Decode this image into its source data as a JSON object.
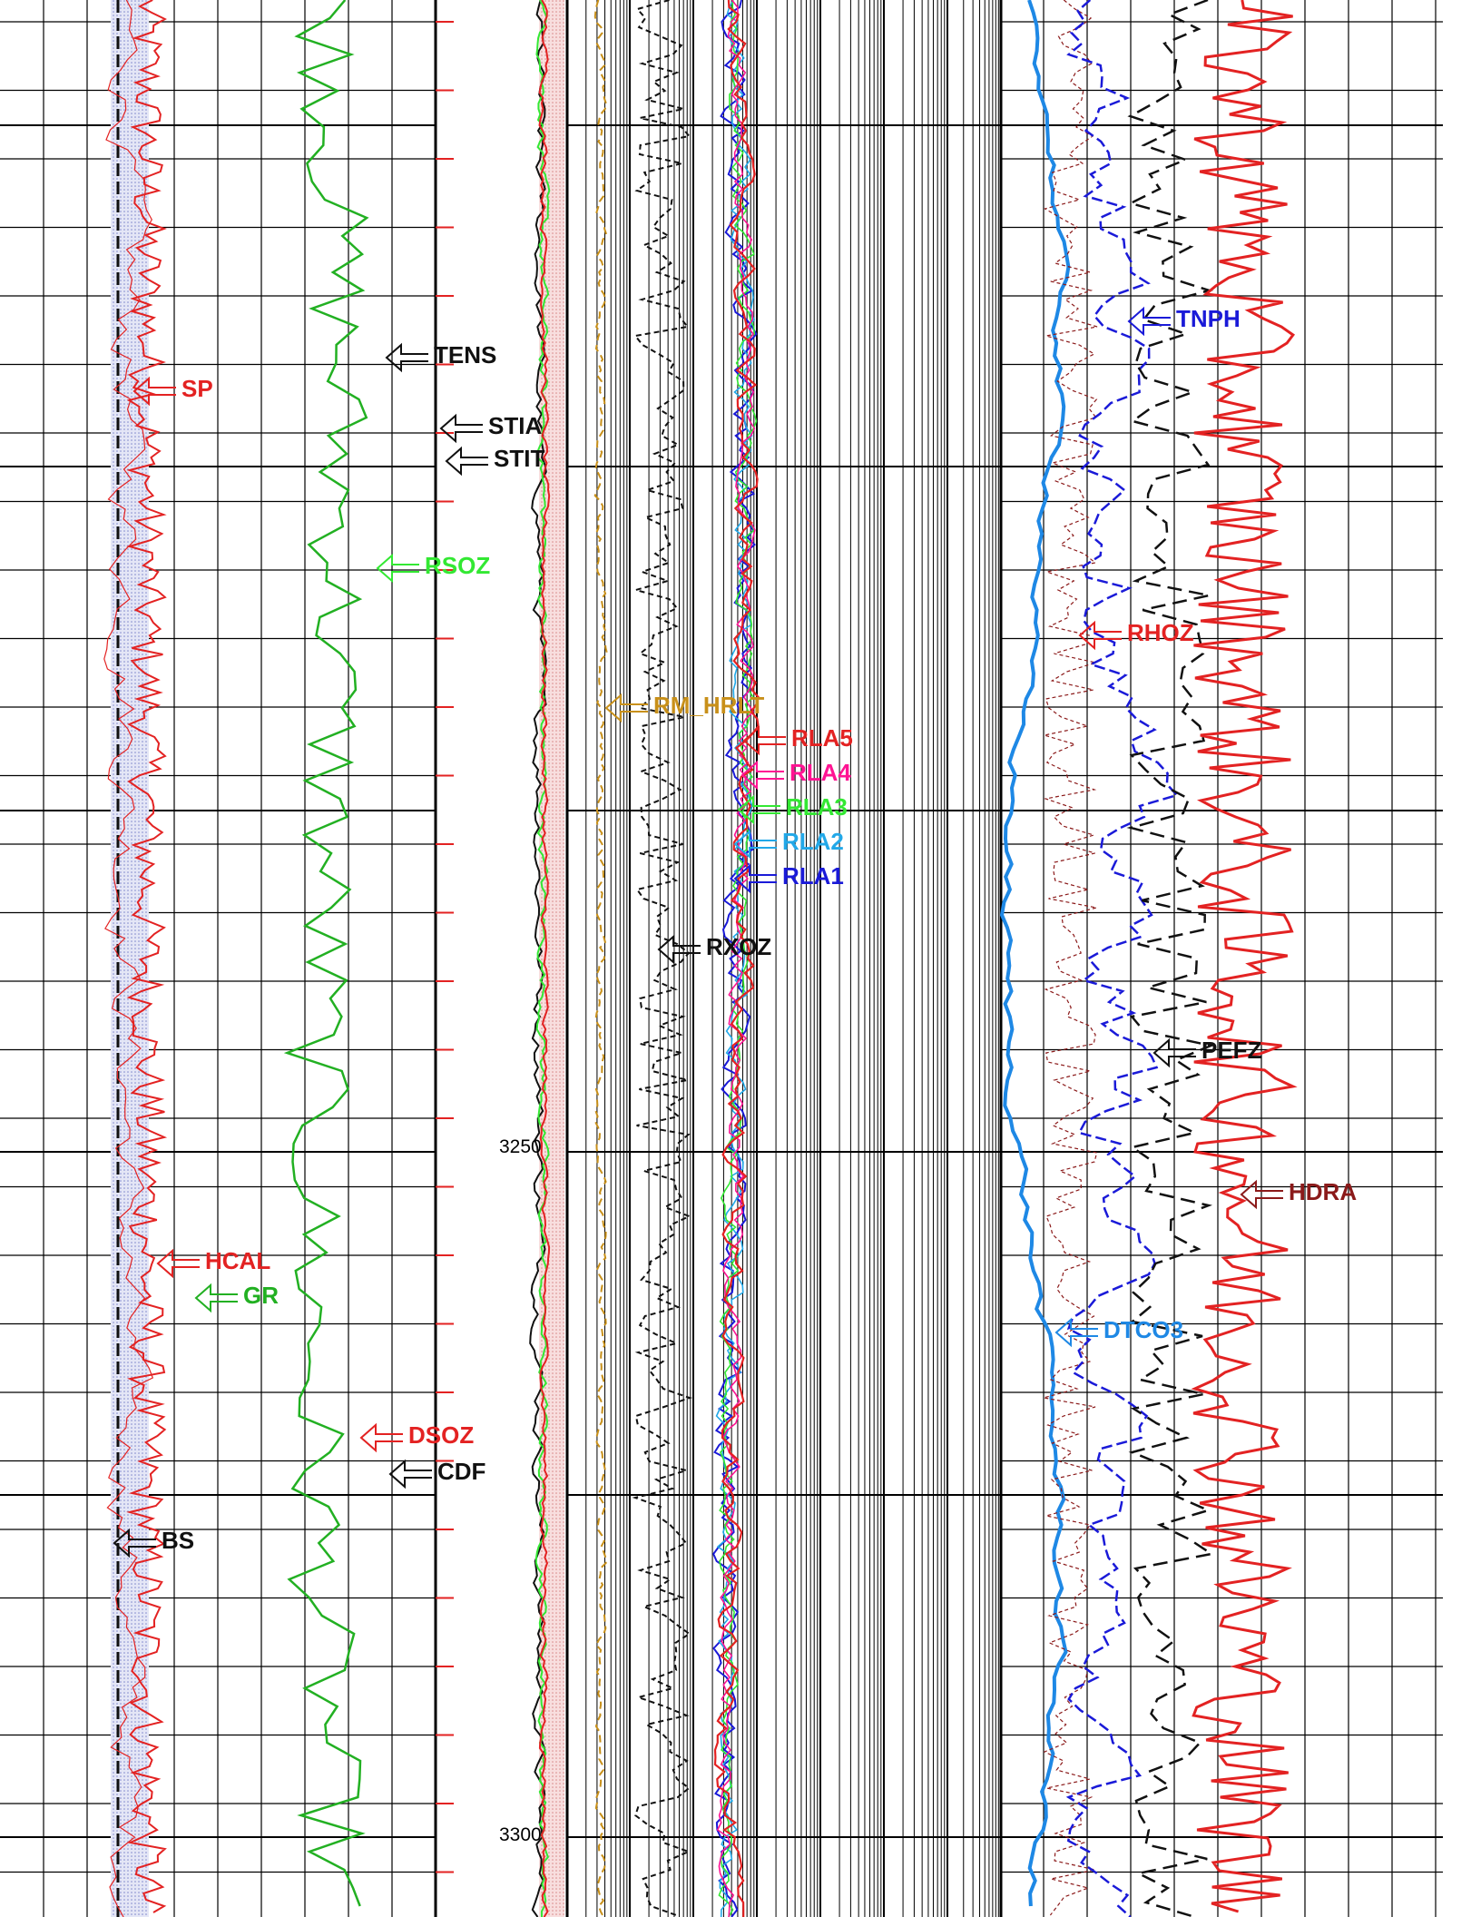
{
  "chart_data": {
    "type": "line",
    "title": "",
    "depth_axis": {
      "unit": "",
      "range": [
        3200,
        3300
      ],
      "labels": [
        {
          "depth": 3250,
          "text": "3250"
        },
        {
          "depth": 3300,
          "text": "3300"
        }
      ]
    },
    "tracks": [
      {
        "name": "track-1",
        "series": [
          {
            "name": "SP",
            "color": "#e32222",
            "label": "SP"
          },
          {
            "name": "HCAL",
            "color": "#e32222",
            "label": "HCAL"
          },
          {
            "name": "GR",
            "color": "#22b022",
            "label": "GR"
          },
          {
            "name": "BS",
            "color": "#111111",
            "label": "BS"
          }
        ]
      },
      {
        "name": "depth-track",
        "series": [
          {
            "name": "TENS",
            "color": "#111111",
            "label": "TENS"
          },
          {
            "name": "STIA",
            "color": "#111111",
            "label": "STIA"
          },
          {
            "name": "STIT",
            "color": "#111111",
            "label": "STIT"
          },
          {
            "name": "RSOZ",
            "color": "#33e833",
            "label": "RSOZ"
          },
          {
            "name": "DSOZ",
            "color": "#e32222",
            "label": "DSOZ"
          },
          {
            "name": "CDF",
            "color": "#111111",
            "label": "CDF"
          }
        ]
      },
      {
        "name": "resistivity-track",
        "scale": "log",
        "series": [
          {
            "name": "RM_HRLT",
            "color": "#c8901a",
            "label": "RM_HRLT"
          },
          {
            "name": "RLA5",
            "color": "#e32222",
            "label": "RLA5"
          },
          {
            "name": "RLA4",
            "color": "#ff1493",
            "label": "RLA4"
          },
          {
            "name": "RLA3",
            "color": "#33e833",
            "label": "RLA3"
          },
          {
            "name": "RLA2",
            "color": "#22a8e8",
            "label": "RLA2"
          },
          {
            "name": "RLA1",
            "color": "#1a1ad8",
            "label": "RLA1"
          },
          {
            "name": "RXOZ",
            "color": "#111111",
            "label": "RXOZ"
          }
        ]
      },
      {
        "name": "porosity-density-track",
        "series": [
          {
            "name": "TNPH",
            "color": "#1a1ad8",
            "label": "TNPH"
          },
          {
            "name": "RHOZ",
            "color": "#e32222",
            "label": "RHOZ"
          },
          {
            "name": "PEFZ",
            "color": "#111111",
            "label": "PEFZ"
          },
          {
            "name": "HDRA",
            "color": "#8b1a1a",
            "label": "HDRA"
          },
          {
            "name": "DTCO3",
            "color": "#1e88e5",
            "label": "DTCO3"
          }
        ]
      }
    ]
  }
}
